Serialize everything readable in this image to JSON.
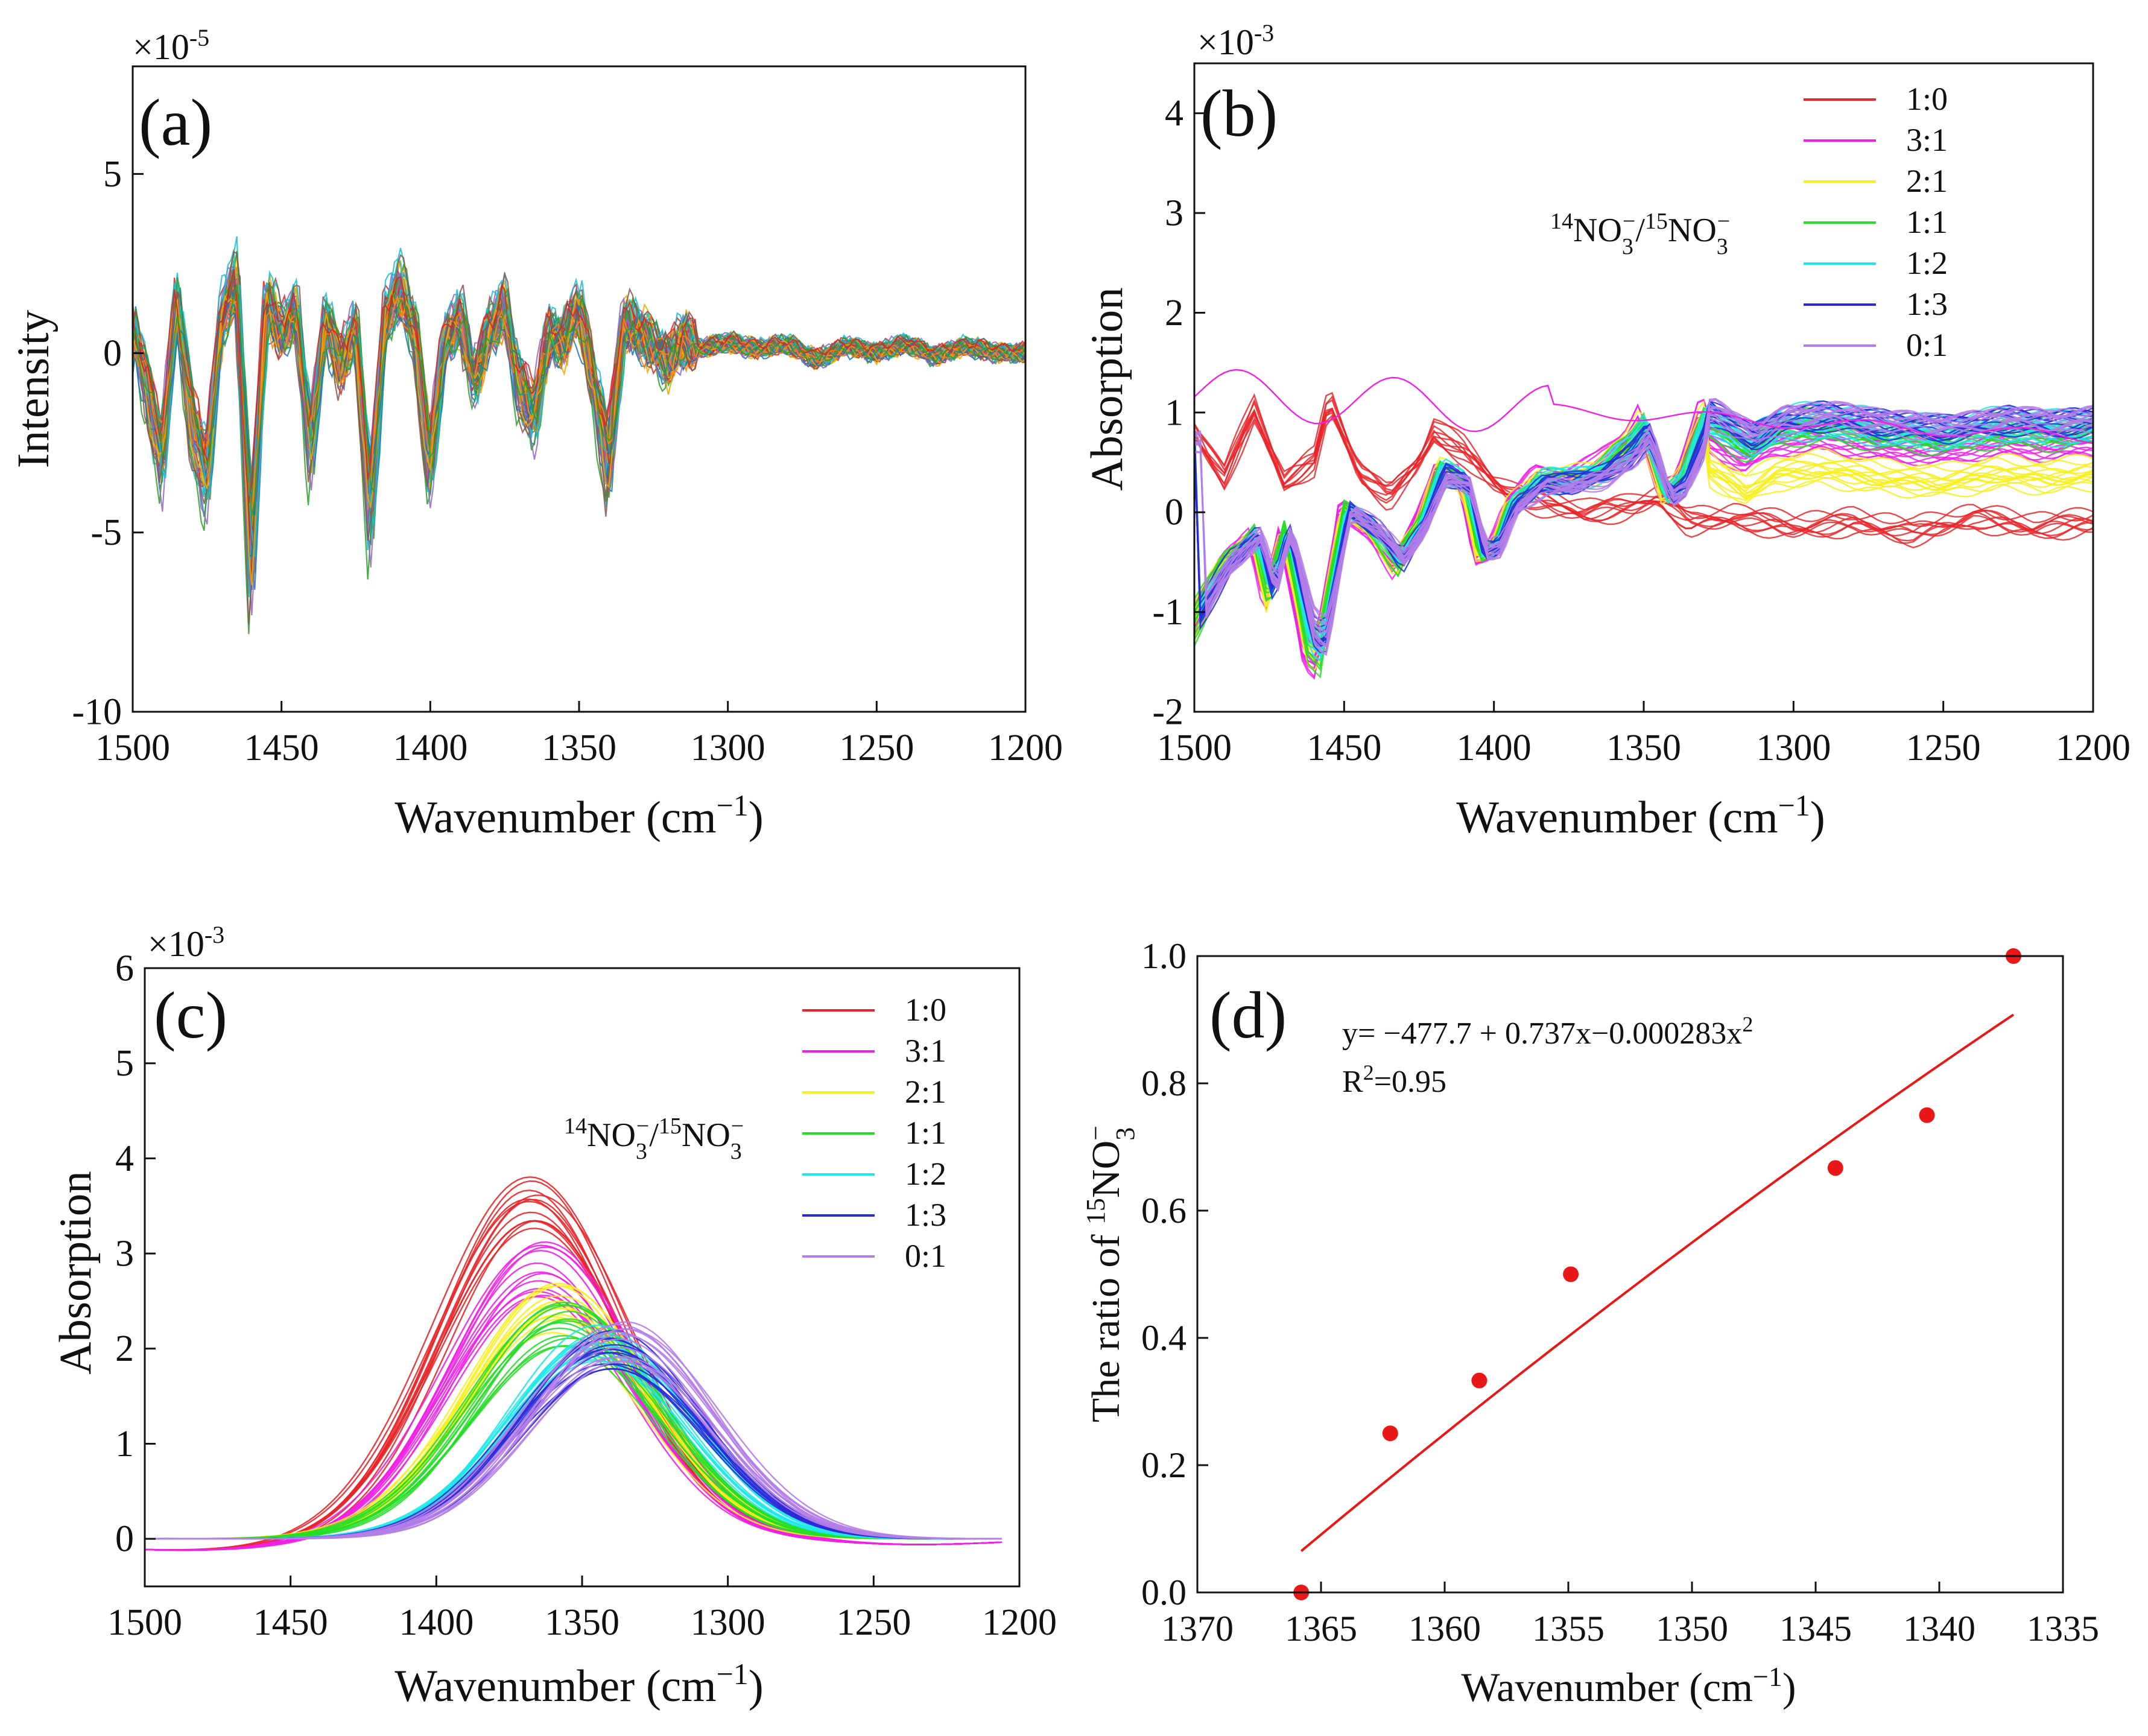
{
  "chart_data": [
    {
      "panel": "(a)",
      "type": "line",
      "xlabel": "Wavenumber (cm",
      "xlabel_sup": "−1",
      "ylabel": "Intensity",
      "y_multiplier": "×10",
      "y_multiplier_exp": "-5",
      "xlim": [
        1500,
        1200
      ],
      "ylim": [
        -10,
        8
      ],
      "x_ticks": [
        1500,
        1450,
        1400,
        1350,
        1300,
        1250,
        1200
      ],
      "y_ticks": [
        5,
        0,
        -5,
        -10
      ],
      "y_tick_labels": [
        "5",
        "0",
        "-5",
        "-10"
      ],
      "n_spectra": 60,
      "x": [
        1500,
        1495,
        1490,
        1485,
        1480,
        1475,
        1470,
        1465,
        1460,
        1455,
        1450,
        1445,
        1440,
        1435,
        1430,
        1425,
        1420,
        1415,
        1410,
        1405,
        1400,
        1395,
        1390,
        1385,
        1380,
        1375,
        1370,
        1365,
        1360,
        1355,
        1350,
        1345,
        1340,
        1335,
        1330,
        1325,
        1320,
        1315,
        1310,
        1300,
        1290,
        1280,
        1270,
        1260,
        1250,
        1240,
        1230,
        1220,
        1210,
        1200
      ],
      "mean_values": [
        0.8,
        -1.0,
        -3.0,
        1.5,
        -2.0,
        -3.5,
        1.0,
        2.0,
        -6.0,
        1.5,
        0.5,
        1.2,
        -2.8,
        1.0,
        -0.5,
        0.8,
        -4.5,
        1.0,
        1.8,
        0.5,
        -3.2,
        0.3,
        1.0,
        -0.8,
        0.6,
        1.3,
        -1.0,
        -1.8,
        0.5,
        0.3,
        1.3,
        -0.8,
        -3.3,
        0.8,
        0.6,
        0.2,
        -0.3,
        0.4,
        0.1,
        0.3,
        0.1,
        0.25,
        -0.2,
        0.2,
        0.0,
        0.25,
        -0.1,
        0.2,
        0.0,
        0.0
      ],
      "palette": [
        "#1f77b4",
        "#ff7f0e",
        "#d62728",
        "#2ca02c",
        "#9467bd",
        "#17becf",
        "#8c564b",
        "#e6ab02"
      ]
    },
    {
      "panel": "(b)",
      "type": "line",
      "xlabel": "Wavenumber (cm",
      "xlabel_sup": "−1",
      "ylabel": "Absorption",
      "y_multiplier": "×10",
      "y_multiplier_exp": "-3",
      "xlim": [
        1500,
        1200
      ],
      "ylim": [
        -2,
        4.5
      ],
      "x_ticks": [
        1500,
        1450,
        1400,
        1350,
        1300,
        1250,
        1200
      ],
      "y_ticks": [
        4,
        3,
        2,
        1,
        0,
        -1,
        -2
      ],
      "legend_title": "¹⁴NO₃⁻/¹⁵NO₃⁻",
      "legend_title_parts": [
        "14",
        "NO",
        "3",
        "−",
        "/",
        "15",
        "NO",
        "3",
        "−"
      ],
      "legend_position": "top-right",
      "series": [
        {
          "name": "1:0",
          "color": "#e8262a"
        },
        {
          "name": "3:1",
          "color": "#f020e6"
        },
        {
          "name": "2:1",
          "color": "#f6f01c"
        },
        {
          "name": "1:1",
          "color": "#27dd27"
        },
        {
          "name": "1:2",
          "color": "#1ee8e8"
        },
        {
          "name": "1:3",
          "color": "#2b2bd8"
        },
        {
          "name": "0:1",
          "color": "#b47ee8"
        }
      ]
    },
    {
      "panel": "(c)",
      "type": "line",
      "xlabel": "Wavenumber (cm",
      "xlabel_sup": "−1",
      "ylabel": "Absorption",
      "y_multiplier": "×10",
      "y_multiplier_exp": "-3",
      "xlim": [
        1500,
        1200
      ],
      "ylim": [
        -0.5,
        6
      ],
      "x_ticks": [
        1500,
        1450,
        1400,
        1350,
        1300,
        1250,
        1200
      ],
      "y_ticks": [
        6,
        5,
        4,
        3,
        2,
        1,
        0
      ],
      "legend_title": "¹⁴NO₃⁻/¹⁵NO₃⁻",
      "legend_title_parts": [
        "14",
        "NO",
        "3",
        "−",
        "/",
        "15",
        "NO",
        "3",
        "−"
      ],
      "legend_position": "top-right",
      "series": [
        {
          "name": "1:0",
          "color": "#e8262a",
          "peak_center": 1367,
          "peak_height": 3.5
        },
        {
          "name": "3:1",
          "color": "#f020e6",
          "peak_center": 1364,
          "peak_height": 2.85
        },
        {
          "name": "2:1",
          "color": "#f6f01c",
          "peak_center": 1358,
          "peak_height": 2.45
        },
        {
          "name": "1:1",
          "color": "#27dd27",
          "peak_center": 1356,
          "peak_height": 2.3
        },
        {
          "name": "1:2",
          "color": "#1ee8e8",
          "peak_center": 1344,
          "peak_height": 2.05
        },
        {
          "name": "1:3",
          "color": "#2b2bd8",
          "peak_center": 1340,
          "peak_height": 2.0
        },
        {
          "name": "0:1",
          "color": "#b47ee8",
          "peak_center": 1337,
          "peak_height": 2.1
        }
      ]
    },
    {
      "panel": "(d)",
      "type": "scatter",
      "xlabel": "Wavenumber (cm",
      "xlabel_sup": "−1",
      "ylabel_parts": [
        "The ratio of ",
        "15",
        "NO",
        "3",
        "−"
      ],
      "xlim": [
        1370,
        1335
      ],
      "ylim": [
        0,
        1.0
      ],
      "x_ticks": [
        1370,
        1365,
        1360,
        1355,
        1350,
        1345,
        1340,
        1335
      ],
      "y_ticks": [
        0.0,
        0.2,
        0.4,
        0.6,
        0.8,
        1.0
      ],
      "y_tick_labels": [
        "0.0",
        "0.2",
        "0.4",
        "0.6",
        "0.8",
        "1.0"
      ],
      "points": [
        {
          "x": 1365.8,
          "y": 0.0
        },
        {
          "x": 1362.2,
          "y": 0.25
        },
        {
          "x": 1358.6,
          "y": 0.333
        },
        {
          "x": 1354.9,
          "y": 0.5
        },
        {
          "x": 1344.2,
          "y": 0.667
        },
        {
          "x": 1340.5,
          "y": 0.75
        },
        {
          "x": 1337.0,
          "y": 1.0
        }
      ],
      "point_color": "#e81818",
      "fit_color": "#e81818",
      "fit_range": [
        1365.8,
        1337.0
      ],
      "fit_y_range": [
        0.065,
        0.908
      ],
      "equation_prefix": "y= −477.7 + 0.737x−0.000283x",
      "equation_sup": "2",
      "r2_prefix": "R",
      "r2_sup": "2",
      "r2_value": "=0.95"
    }
  ]
}
